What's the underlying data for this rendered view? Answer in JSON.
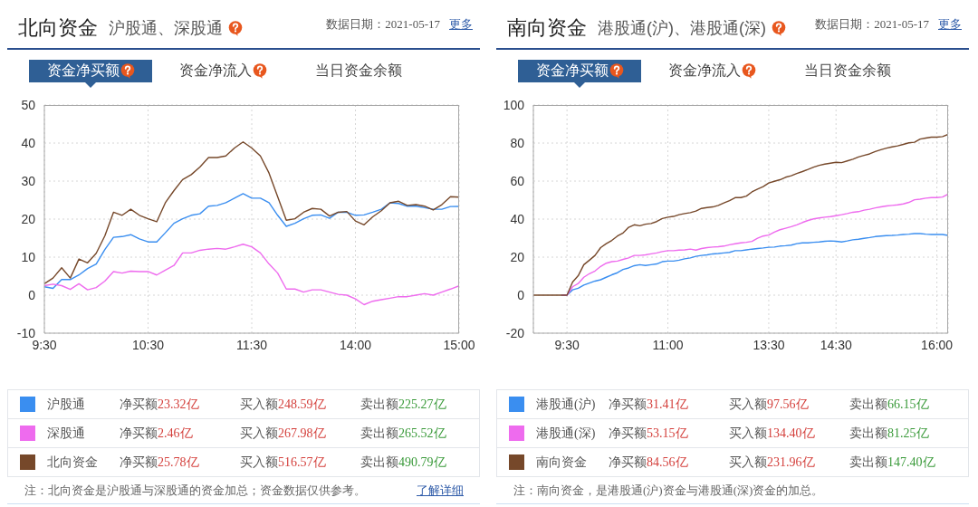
{
  "chart_data": [
    {
      "type": "line",
      "title": "北向资金",
      "subtitle": "沪股通、深股通",
      "categories": [
        "9:30",
        null,
        null,
        null,
        null,
        null,
        null,
        null,
        null,
        null,
        null,
        null,
        "10:30",
        null,
        null,
        null,
        null,
        null,
        null,
        null,
        null,
        null,
        null,
        null,
        "11:30",
        null,
        null,
        null,
        null,
        null,
        null,
        null,
        null,
        null,
        null,
        null,
        "14:00",
        null,
        null,
        null,
        null,
        null,
        null,
        null,
        null,
        null,
        null,
        null,
        "15:00"
      ],
      "series": [
        {
          "name": "沪股通",
          "color": "#3a8ef0",
          "values": [
            2.2,
            1.8,
            4.1,
            4.1,
            5.3,
            7,
            8.2,
            12,
            15.2,
            15.4,
            15.9,
            14.8,
            14,
            14,
            16.4,
            18.9,
            20.1,
            21,
            21.4,
            23.4,
            23.6,
            24.3,
            25.5,
            26.7,
            25.5,
            25.5,
            24.3,
            21,
            18.1,
            18.9,
            20.1,
            21,
            21.1,
            20.2,
            21.8,
            21.8,
            21,
            21.1,
            21.8,
            22.6,
            24.3,
            24.1,
            23.4,
            23.4,
            23,
            22.6,
            22.6,
            23.3,
            23.32
          ]
        },
        {
          "name": "深股通",
          "color": "#ee6bee",
          "values": [
            2.5,
            2.9,
            2.5,
            1.5,
            3,
            1.4,
            2,
            3.7,
            6.2,
            5.8,
            6.3,
            6.2,
            6.2,
            5.3,
            6.6,
            7.8,
            11.1,
            11.1,
            11.8,
            12.1,
            12.3,
            12.1,
            12.7,
            13.4,
            12.7,
            11.1,
            8.2,
            5.8,
            1.6,
            1.6,
            0.8,
            1.4,
            1.4,
            0.8,
            0.2,
            0,
            -1,
            -2.5,
            -1.6,
            -1.2,
            -0.8,
            -0.4,
            -0.4,
            0,
            0.4,
            0,
            0.8,
            1.6,
            2.46
          ]
        },
        {
          "name": "北向资金",
          "color": "#76482a",
          "values": [
            3,
            4.5,
            7.2,
            4.5,
            9.5,
            8.5,
            11,
            15.6,
            21.8,
            21,
            22.6,
            21,
            20.1,
            19.3,
            24.3,
            27.5,
            30.4,
            31.7,
            33.7,
            36.2,
            36.2,
            36.6,
            38.7,
            40.3,
            38.7,
            36.6,
            32.1,
            25.9,
            19.7,
            20.1,
            21.8,
            22.8,
            22.6,
            20.8,
            21.8,
            22,
            19.5,
            18.5,
            20.6,
            22.2,
            24.3,
            24.7,
            23.6,
            23.8,
            23.4,
            22.4,
            23.8,
            25.9,
            25.78
          ]
        }
      ],
      "ylim": [
        -10,
        50
      ],
      "yticks": [
        -10,
        0,
        10,
        20,
        30,
        40,
        50
      ],
      "grid": true,
      "legend": "bottom",
      "annotations": [
        "数据日期：2021-05-17",
        "更多",
        "资金净买额",
        "资金净流入",
        "当日资金余额",
        "净买额23.32亿",
        "买入额248.59亿",
        "卖出额225.27亿",
        "净买额2.46亿",
        "买入额267.98亿",
        "卖出额265.52亿",
        "净买额25.78亿",
        "买入额516.57亿",
        "卖出额490.79亿",
        "注：北向资金是沪股通与深股通的资金加总；资金数据仅供参考。",
        "了解详细"
      ]
    },
    {
      "type": "line",
      "title": "南向资金",
      "subtitle": "港股通(沪)、港股通(深)",
      "categories": [
        null,
        null,
        null,
        null,
        null,
        null,
        "9:30",
        null,
        null,
        null,
        null,
        null,
        null,
        null,
        null,
        null,
        null,
        null,
        null,
        null,
        null,
        null,
        null,
        null,
        "11:00",
        null,
        null,
        null,
        null,
        null,
        null,
        null,
        null,
        null,
        null,
        null,
        null,
        null,
        null,
        null,
        null,
        null,
        "13:30",
        null,
        null,
        null,
        null,
        null,
        null,
        null,
        null,
        null,
        null,
        null,
        "14:30",
        null,
        null,
        null,
        null,
        null,
        null,
        null,
        null,
        null,
        null,
        null,
        null,
        null,
        null,
        null,
        null,
        null,
        "16:00",
        null,
        null
      ],
      "series": [
        {
          "name": "港股通(沪)",
          "color": "#3a8ef0",
          "values": [
            null,
            null,
            null,
            null,
            null,
            0,
            0,
            2.8,
            3.6,
            5.3,
            6.4,
            7.4,
            8.1,
            9.4,
            10.7,
            11.8,
            13.5,
            14.3,
            15.5,
            16,
            15.6,
            16,
            16.4,
            17.6,
            17.9,
            17.9,
            18.4,
            19.1,
            19.6,
            20.4,
            20.9,
            21.2,
            21.7,
            21.9,
            22.2,
            22.5,
            23.4,
            23.4,
            23.8,
            24.2,
            24.5,
            24.8,
            25.2,
            25.3,
            25.8,
            26,
            26.3,
            27.1,
            27.5,
            27.5,
            27.8,
            28,
            28.3,
            28.5,
            28.3,
            28,
            28.5,
            29.1,
            29.4,
            29.9,
            30.3,
            30.8,
            31.1,
            31.3,
            31.4,
            31.6,
            31.9,
            32.1,
            32.4,
            32.4,
            32.1,
            31.9,
            31.9,
            31.9,
            31.41
          ]
        },
        {
          "name": "港股通(深)",
          "color": "#ee6bee",
          "values": [
            null,
            null,
            null,
            null,
            null,
            0,
            0,
            4.4,
            6.1,
            9.4,
            11.3,
            12.7,
            15.1,
            16.8,
            17.6,
            17.9,
            18.8,
            19.6,
            20.9,
            20.9,
            21.2,
            21.7,
            22.2,
            22.9,
            23.4,
            23.4,
            23.7,
            23.8,
            24.2,
            23.7,
            24.5,
            25,
            25.3,
            25.5,
            25.8,
            26.5,
            27,
            27.5,
            27.8,
            28.3,
            29.9,
            31.1,
            31.6,
            33.2,
            34.4,
            35.2,
            36,
            37,
            38.2,
            39.3,
            40.1,
            40.6,
            41,
            41.3,
            41.8,
            42.3,
            42.9,
            43.6,
            43.9,
            44.7,
            45.2,
            45.9,
            46.4,
            46.9,
            47.2,
            47.5,
            48,
            48.8,
            50.2,
            50.5,
            51,
            51.3,
            51.3,
            51.6,
            53.15
          ]
        },
        {
          "name": "南向资金",
          "color": "#76482a",
          "values": [
            0,
            0,
            0,
            0,
            0,
            0,
            0,
            6.9,
            10.2,
            16,
            18.4,
            20.9,
            25,
            27.1,
            28.8,
            31.1,
            32.7,
            35.7,
            37,
            36.5,
            37.3,
            37.7,
            38.7,
            40.3,
            41,
            41.4,
            42.3,
            42.9,
            43.4,
            44.2,
            45.6,
            46.1,
            46.4,
            47.2,
            48.5,
            49.7,
            51.3,
            51.3,
            52.1,
            54.3,
            55.8,
            57.1,
            59,
            59.9,
            60.7,
            62,
            62.8,
            64,
            65,
            66.1,
            67.3,
            68.3,
            68.9,
            69.4,
            69.9,
            69.7,
            70.6,
            71.5,
            72.7,
            73.5,
            74.3,
            75.5,
            76.5,
            77.3,
            78,
            78.5,
            79.3,
            80.1,
            80.4,
            82.1,
            82.6,
            83.1,
            83.1,
            83.4,
            84.56
          ]
        }
      ],
      "ylim": [
        -20,
        100
      ],
      "yticks": [
        -20,
        0,
        20,
        40,
        60,
        80,
        100
      ],
      "grid": true,
      "legend": "bottom",
      "annotations": [
        "数据日期：2021-05-17",
        "更多",
        "资金净买额",
        "资金净流入",
        "当日资金余额",
        "净买额31.41亿",
        "买入额97.56亿",
        "卖出额66.15亿",
        "净买额53.15亿",
        "买入额134.40亿",
        "卖出额81.25亿",
        "净买额84.56亿",
        "买入额231.96亿",
        "卖出额147.40亿",
        "注：南向资金，是港股通(沪)资金与港股通(深)资金的加总。"
      ]
    }
  ]
}
